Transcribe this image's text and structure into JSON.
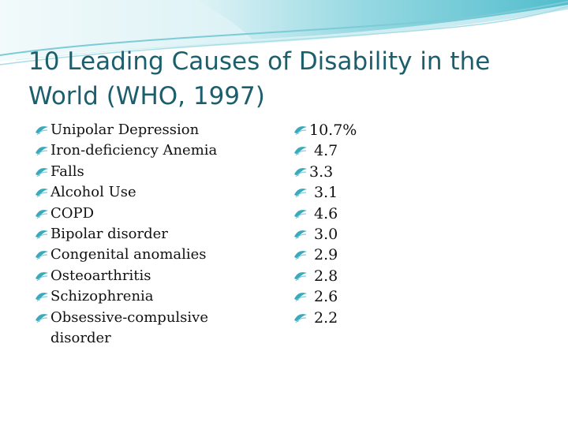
{
  "slide": {
    "title": "10 Leading Causes of Disability in the World  (WHO, 1997)",
    "accent_color": "#1c5f6c",
    "bullet_icon": "wave-bullet-icon",
    "causes": [
      {
        "label": "Unipolar Depression",
        "value": "10.7%"
      },
      {
        "label": "Iron-deficiency Anemia",
        "value": " 4.7"
      },
      {
        "label": "Falls",
        "value": "3.3"
      },
      {
        "label": "Alcohol Use",
        "value": " 3.1"
      },
      {
        "label": "COPD",
        "value": " 4.6"
      },
      {
        "label": "Bipolar disorder",
        "value": " 3.0"
      },
      {
        "label": "Congenital anomalies",
        "value": " 2.9"
      },
      {
        "label": "Osteoarthritis",
        "value": " 2.8"
      },
      {
        "label": "Schizophrenia",
        "value": " 2.6"
      },
      {
        "label": "Obsessive-compulsive disorder",
        "value": " 2.2"
      }
    ]
  }
}
